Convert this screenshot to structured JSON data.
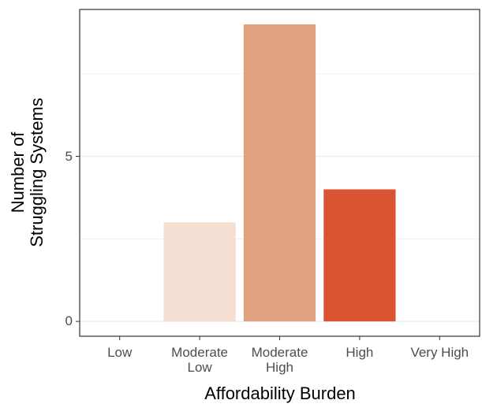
{
  "chart_data": {
    "type": "bar",
    "categories": [
      "Low",
      "Moderate\nLow",
      "Moderate\nHigh",
      "High",
      "Very High"
    ],
    "values": [
      0,
      3,
      9,
      4,
      0
    ],
    "colors": [
      "#fbece4",
      "#f5dfd3",
      "#e0a27e",
      "#d95531",
      "#a8321b"
    ],
    "xlabel": "Affordability Burden",
    "ylabel": "Number of\nStruggling Systems",
    "ylim": [
      -0.45,
      9.45
    ],
    "yticks": [
      0,
      5
    ],
    "minor_yticks": [
      2.5,
      7.5
    ],
    "grid": true
  }
}
